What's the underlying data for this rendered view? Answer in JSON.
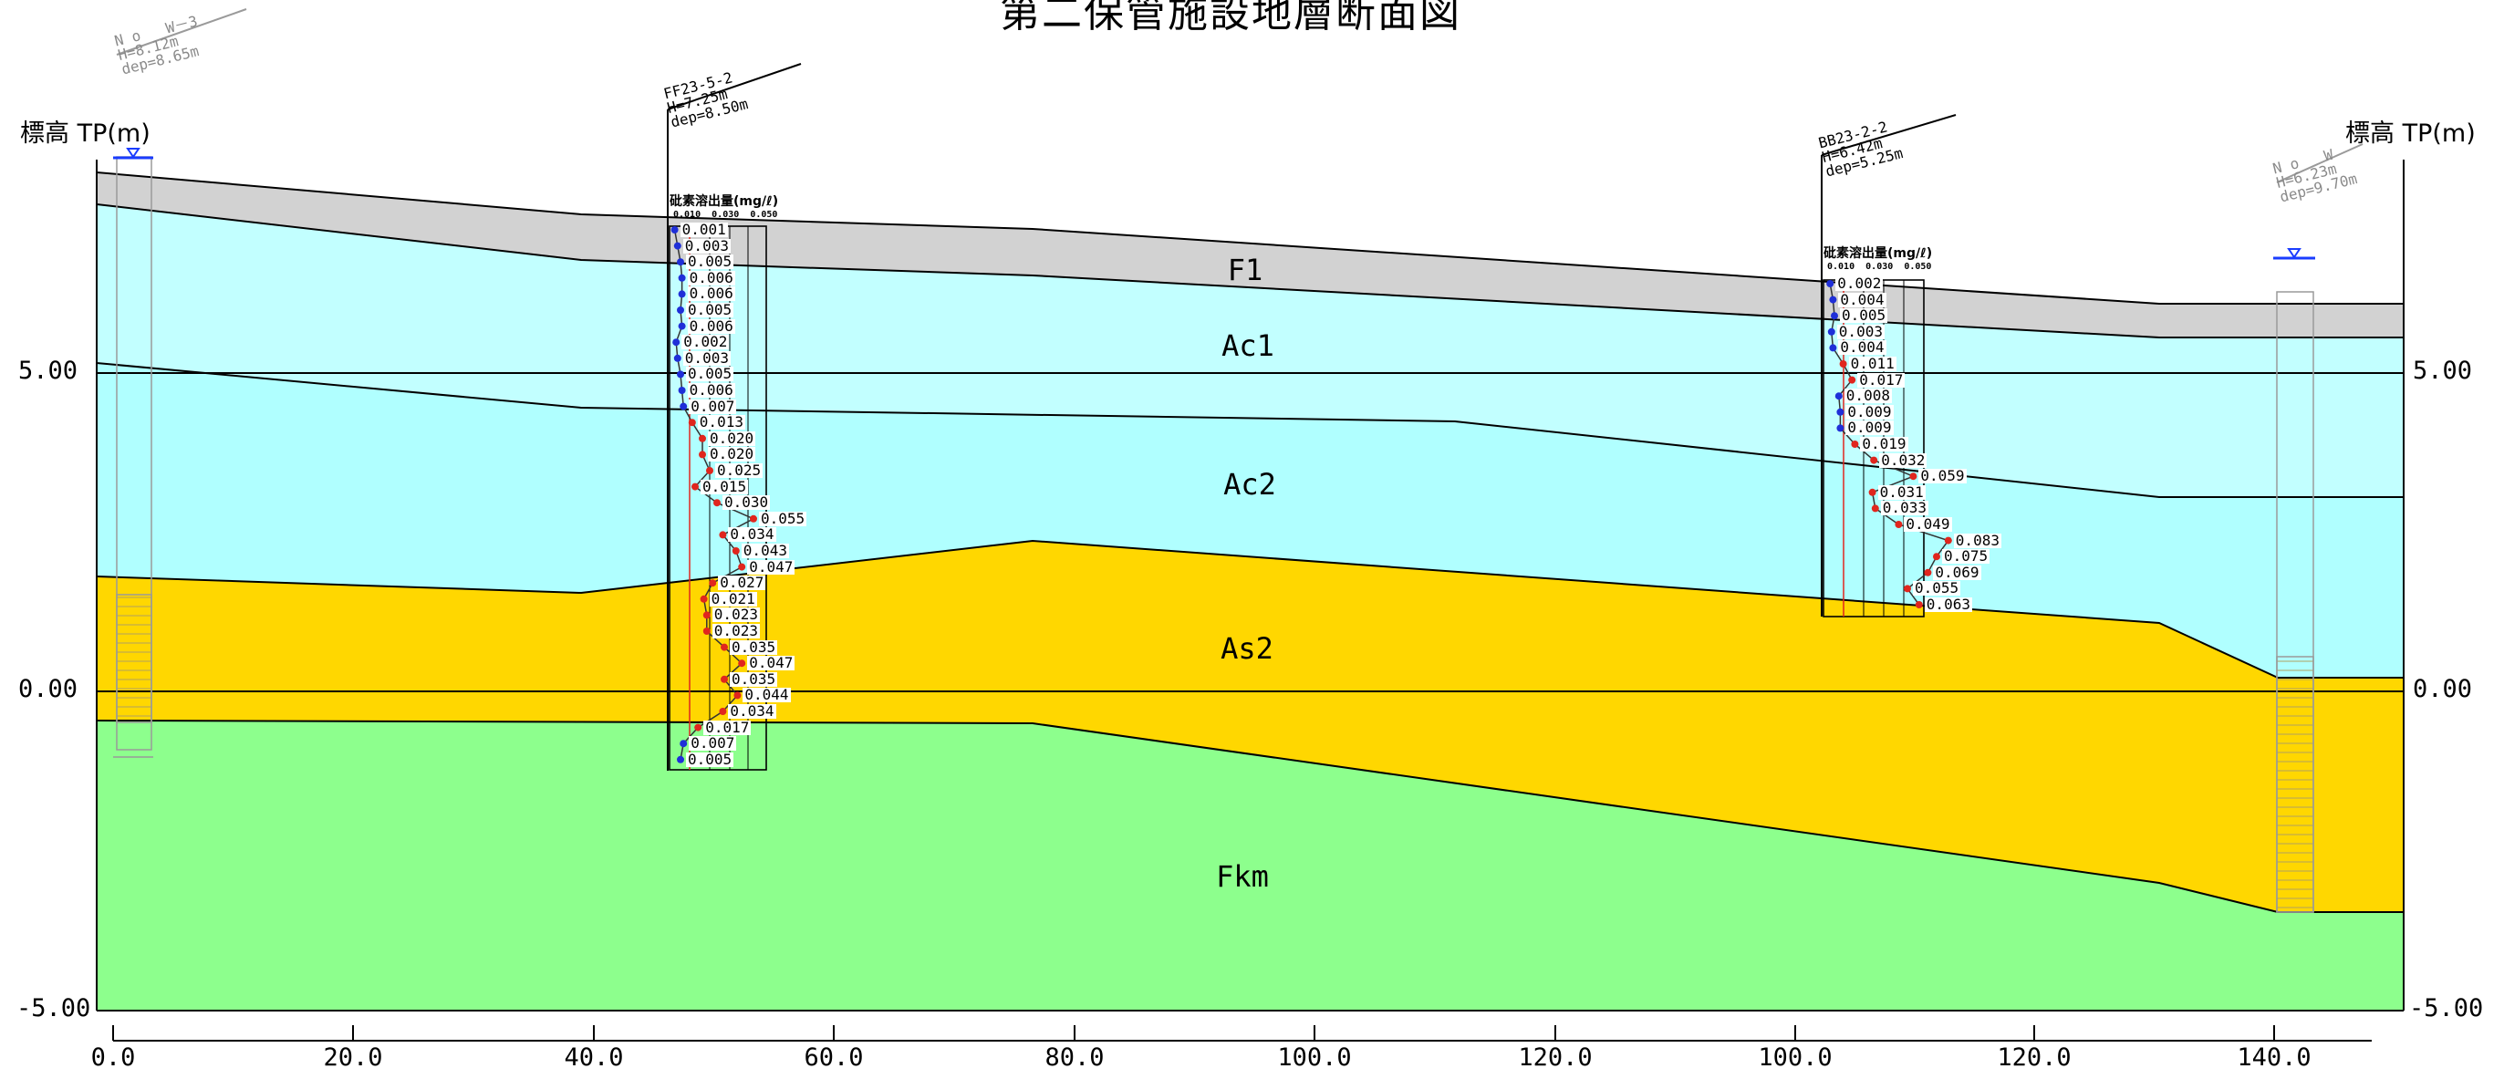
{
  "title": "第二保管施設地層断面図",
  "y_axis": {
    "label_left": "標高 TP(m)",
    "label_right": "標高 TP(m)",
    "ticks": [
      "5.00",
      "0.00",
      "-5.00"
    ]
  },
  "x_axis": {
    "ticks": [
      "0.0",
      "20.0",
      "40.0",
      "60.0",
      "80.0",
      "100.0",
      "120.0",
      "100.0",
      "120.0",
      "140.0"
    ]
  },
  "layers": [
    {
      "name": "F1",
      "color": "#d2d2d2"
    },
    {
      "name": "Ac1",
      "color": "#c2ffff"
    },
    {
      "name": "Ac2",
      "color": "#b0ffff"
    },
    {
      "name": "As2",
      "color": "#ffd700"
    },
    {
      "name": "Fkm",
      "color": "#8dff8d"
    }
  ],
  "boreholes": [
    {
      "id": "bh_w3",
      "name": "N o   W－3",
      "h": "H=8.12m",
      "dep": "dep=8.65m"
    },
    {
      "id": "bh_ff",
      "name": "FF23-5-2",
      "h": "H=7.25m",
      "dep": "dep=8.50m"
    },
    {
      "id": "bh_bb",
      "name": "BB23-2-2",
      "h": "H=6.42m",
      "dep": "dep=5.25m"
    },
    {
      "id": "bh_w",
      "name": "N o   W",
      "h": "H=6.23m",
      "dep": "dep=9.70m"
    }
  ],
  "arsenic_columns": [
    {
      "id": "as_ff",
      "header": "砒素溶出量(mg/ℓ)",
      "scale": [
        "0.010",
        "0.030",
        "0.050"
      ],
      "values": [
        "0.001",
        "0.003",
        "0.005",
        "0.006",
        "0.006",
        "0.005",
        "0.006",
        "0.002",
        "0.003",
        "0.005",
        "0.006",
        "0.007",
        "0.013",
        "0.020",
        "0.020",
        "0.025",
        "0.015",
        "0.030",
        "0.055",
        "0.034",
        "0.043",
        "0.047",
        "0.027",
        "0.021",
        "0.023",
        "0.023",
        "0.035",
        "0.047",
        "0.035",
        "0.044",
        "0.034",
        "0.017",
        "0.007",
        "0.005"
      ]
    },
    {
      "id": "as_bb",
      "header": "砒素溶出量(mg/ℓ)",
      "scale": [
        "0.010",
        "0.030",
        "0.050"
      ],
      "values": [
        "0.002",
        "0.004",
        "0.005",
        "0.003",
        "0.004",
        "0.011",
        "0.017",
        "0.008",
        "0.009",
        "0.009",
        "0.019",
        "0.032",
        "0.059",
        "0.031",
        "0.033",
        "0.049",
        "0.083",
        "0.075",
        "0.069",
        "0.055",
        "0.063"
      ]
    }
  ],
  "colors": {
    "below_limit_marker": "#1f2fd8",
    "above_limit_marker": "#e0261e",
    "water_level": "#1a3cff"
  }
}
